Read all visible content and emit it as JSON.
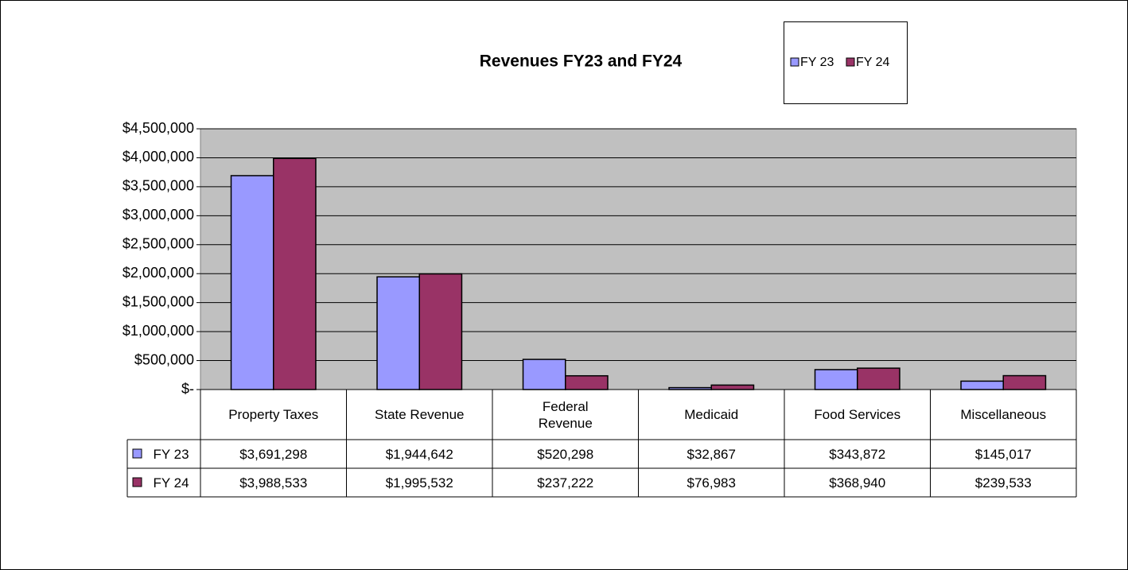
{
  "chart_data": {
    "type": "bar",
    "title": "Revenues FY23 and FY24",
    "categories": [
      "Property Taxes",
      "State Revenue",
      "Federal Revenue",
      "Medicaid",
      "Food Services",
      "Miscellaneous"
    ],
    "series": [
      {
        "name": "FY 23",
        "color": "#9999ff",
        "values": [
          3691298,
          1944642,
          520298,
          32867,
          343872,
          145017
        ],
        "value_labels": [
          "$3,691,298",
          "$1,944,642",
          "$520,298",
          "$32,867",
          "$343,872",
          "$145,017"
        ]
      },
      {
        "name": "FY 24",
        "color": "#993366",
        "values": [
          3988533,
          1995532,
          237222,
          76983,
          368940,
          239533
        ],
        "value_labels": [
          "$3,988,533",
          "$1,995,532",
          "$237,222",
          "$76,983",
          "$368,940",
          "$239,533"
        ]
      }
    ],
    "ylim": [
      0,
      4500000
    ],
    "yticks": [
      {
        "value": 0,
        "label": "$-"
      },
      {
        "value": 500000,
        "label": "$500,000"
      },
      {
        "value": 1000000,
        "label": "$1,000,000"
      },
      {
        "value": 1500000,
        "label": "$1,500,000"
      },
      {
        "value": 2000000,
        "label": "$2,000,000"
      },
      {
        "value": 2500000,
        "label": "$2,500,000"
      },
      {
        "value": 3000000,
        "label": "$3,000,000"
      },
      {
        "value": 3500000,
        "label": "$3,500,000"
      },
      {
        "value": 4000000,
        "label": "$4,000,000"
      },
      {
        "value": 4500000,
        "label": "$4,500,000"
      }
    ],
    "grid": true,
    "plot_background": "#c0c0c0",
    "legend": "top-right"
  }
}
